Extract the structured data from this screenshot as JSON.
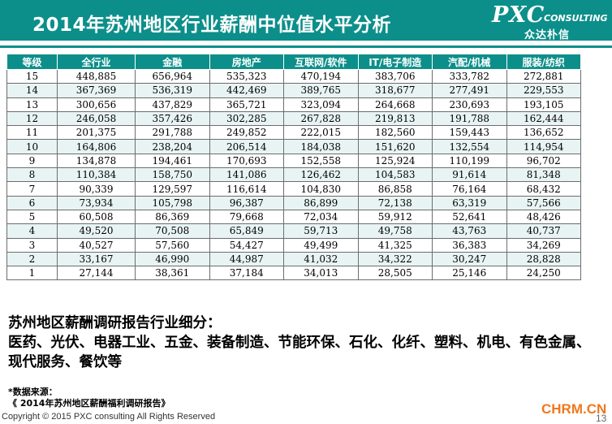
{
  "header": {
    "title": "2014年苏州地区行业薪酬中位值水平分析"
  },
  "logo": {
    "brand": "PXC",
    "consulting": "CONSULTING",
    "cn": "众达朴信"
  },
  "table": {
    "columns": [
      "等级",
      "全行业",
      "金融",
      "房地产",
      "互联网/软件",
      "IT/电子制造",
      "汽配/机械",
      "服装/纺织"
    ],
    "rows": [
      [
        "15",
        "448,885",
        "656,964",
        "535,323",
        "470,194",
        "383,706",
        "333,782",
        "272,881"
      ],
      [
        "14",
        "367,369",
        "536,319",
        "442,469",
        "389,765",
        "318,677",
        "277,491",
        "229,553"
      ],
      [
        "13",
        "300,656",
        "437,829",
        "365,721",
        "323,094",
        "264,668",
        "230,693",
        "193,105"
      ],
      [
        "12",
        "246,058",
        "357,426",
        "302,285",
        "267,828",
        "219,813",
        "191,788",
        "162,444"
      ],
      [
        "11",
        "201,375",
        "291,788",
        "249,852",
        "222,015",
        "182,560",
        "159,443",
        "136,652"
      ],
      [
        "10",
        "164,806",
        "238,204",
        "206,514",
        "184,038",
        "151,620",
        "132,554",
        "114,954"
      ],
      [
        "9",
        "134,878",
        "194,461",
        "170,693",
        "152,558",
        "125,924",
        "110,199",
        "96,702"
      ],
      [
        "8",
        "110,384",
        "158,750",
        "141,086",
        "126,462",
        "104,583",
        "91,614",
        "81,348"
      ],
      [
        "7",
        "90,339",
        "129,597",
        "116,614",
        "104,830",
        "86,858",
        "76,164",
        "68,432"
      ],
      [
        "6",
        "73,934",
        "105,798",
        "96,387",
        "86,899",
        "72,138",
        "63,319",
        "57,566"
      ],
      [
        "5",
        "60,508",
        "86,369",
        "79,668",
        "72,034",
        "59,912",
        "52,641",
        "48,426"
      ],
      [
        "4",
        "49,520",
        "70,508",
        "65,849",
        "59,713",
        "49,758",
        "43,763",
        "40,737"
      ],
      [
        "3",
        "40,527",
        "57,560",
        "54,427",
        "49,499",
        "41,325",
        "36,383",
        "34,269"
      ],
      [
        "2",
        "33,167",
        "46,990",
        "44,987",
        "41,032",
        "34,322",
        "30,247",
        "28,828"
      ],
      [
        "1",
        "27,144",
        "38,361",
        "37,184",
        "34,013",
        "28,505",
        "25,146",
        "24,250"
      ]
    ]
  },
  "note": {
    "line1": "苏州地区薪酬调研报告行业细分：",
    "line2": "医药、光伏、电器工业、五金、装备制造、节能环保、石化、化纤、塑料、机电、有色金属、",
    "line3": "现代服务、餐饮等"
  },
  "source": {
    "label": "*数据来源：",
    "ref": "《 2014年苏州地区薪酬福利调研报告》"
  },
  "footer": {
    "copyright": "Copyright © 2015 PXC consulting All Rights Reserved",
    "watermark": "CHRM.CN",
    "page_number": "13"
  },
  "colors": {
    "accent": "#0c8f8a",
    "watermark": "#f0781e"
  }
}
